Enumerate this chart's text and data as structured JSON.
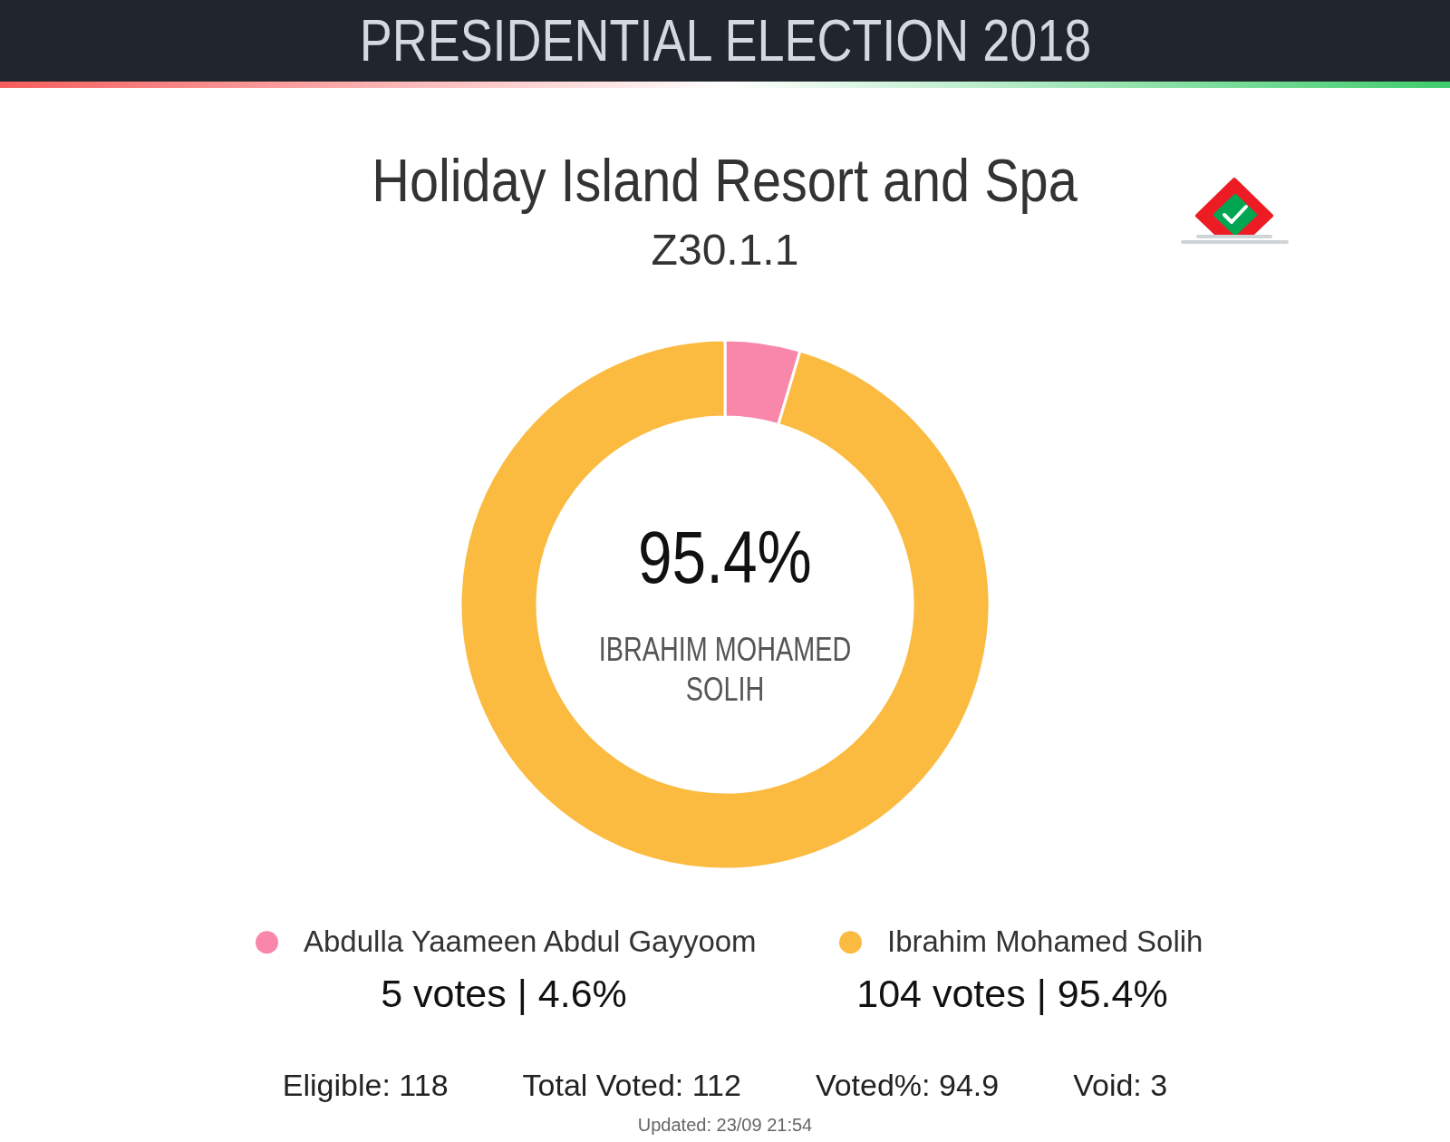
{
  "chart_data": {
    "type": "donut",
    "title": "Holiday Island Resort and Spa",
    "subtitle": "Z30.1.1",
    "categories": [
      "Abdulla Yaameen Abdul Gayyoom",
      "Ibrahim Mohamed Solih"
    ],
    "values": [
      5,
      104
    ],
    "colors": [
      "#f987aa",
      "#fbbb40"
    ],
    "value_labels": [
      "5 votes | 4.6%",
      "104 votes | 95.4%"
    ],
    "legend": "bottom",
    "annotations": [
      "PRESIDENTIAL ELECTION 2018",
      "95.4%",
      "IBRAHIM MOHAMED SOLIH",
      "Eligible: 118",
      "Total Voted: 112",
      "Voted%: 94.9",
      "Void: 3",
      "Updated: 23/09 21:54"
    ]
  }
}
